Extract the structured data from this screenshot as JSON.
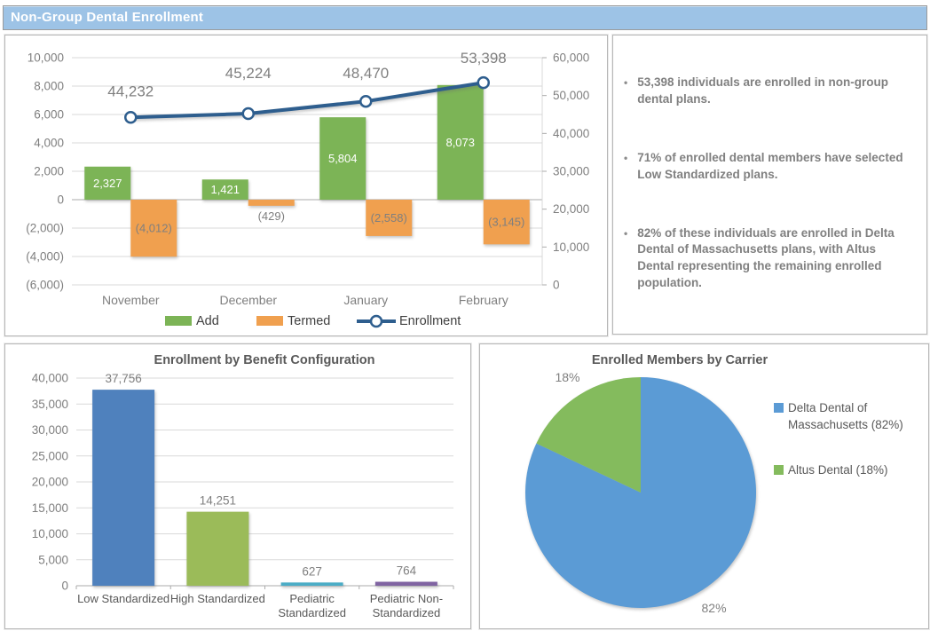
{
  "header": {
    "title": "Non-Group Dental Enrollment"
  },
  "colors": {
    "titlebar_bg": "#9DC3E6",
    "titlebar_text": "#FFFFFF",
    "panel_border": "#B7B7B7",
    "add_green": "#7CB456",
    "termed_orange": "#F0A04F",
    "enrollment_line": "#2E5E8E",
    "grid": "#D9D9D9",
    "axis": "#ABABAB",
    "text_gray": "#7F7F7F",
    "legend_text": "#404040",
    "dark_label": "#595959",
    "insight_text": "#808080"
  },
  "insights": {
    "bullets": [
      "53,398 individuals are enrolled in non-group dental plans.",
      "71% of enrolled dental members have selected Low Standardized plans.",
      "82% of these individuals are enrolled in Delta Dental of Massachusetts plans, with Altus Dental representing the remaining enrolled population."
    ]
  },
  "chart_data": [
    {
      "id": "enrollment-combo",
      "type": "bar-line-combo",
      "title": "",
      "categories": [
        "November",
        "December",
        "January",
        "February"
      ],
      "series": [
        {
          "name": "Add",
          "type": "bar",
          "axis": "left",
          "color": "#7CB456",
          "values": [
            2327,
            1421,
            5804,
            8073
          ]
        },
        {
          "name": "Termed",
          "type": "bar",
          "axis": "left",
          "color": "#F0A04F",
          "values": [
            -4012,
            -429,
            -2558,
            -3145
          ]
        },
        {
          "name": "Enrollment",
          "type": "line",
          "axis": "right",
          "color": "#2E5E8E",
          "values": [
            44232,
            45224,
            48470,
            53398
          ]
        }
      ],
      "left_axis": {
        "min": -6000,
        "max": 10000,
        "step": 2000
      },
      "right_axis": {
        "min": 0,
        "max": 60000,
        "step": 10000
      },
      "legend": [
        "Add",
        "Termed",
        "Enrollment"
      ],
      "legend_position": "bottom",
      "grid": true
    },
    {
      "id": "benefit-configuration",
      "type": "bar",
      "title": "Enrollment by Benefit Configuration",
      "categories": [
        "Low Standardized",
        "High Standardized",
        "Pediatric\nStandardized",
        "Pediatric Non-\nStandardized"
      ],
      "values": [
        37756,
        14251,
        627,
        764
      ],
      "bar_colors": [
        "#4F81BD",
        "#9BBB59",
        "#4BACC6",
        "#8064A2"
      ],
      "xlabel": "",
      "ylabel": "",
      "ylim": [
        0,
        40000
      ],
      "ystep": 5000,
      "grid": true
    },
    {
      "id": "carrier-pie",
      "type": "pie",
      "title": "Enrolled Members by Carrier",
      "slices": [
        {
          "label": "Delta Dental of\nMassachusetts (82%)",
          "value": 82,
          "pct_label": "82%",
          "color": "#5B9BD5"
        },
        {
          "label": "Altus Dental (18%)",
          "value": 18,
          "pct_label": "18%",
          "color": "#84BB5D"
        }
      ],
      "legend_position": "right"
    }
  ]
}
